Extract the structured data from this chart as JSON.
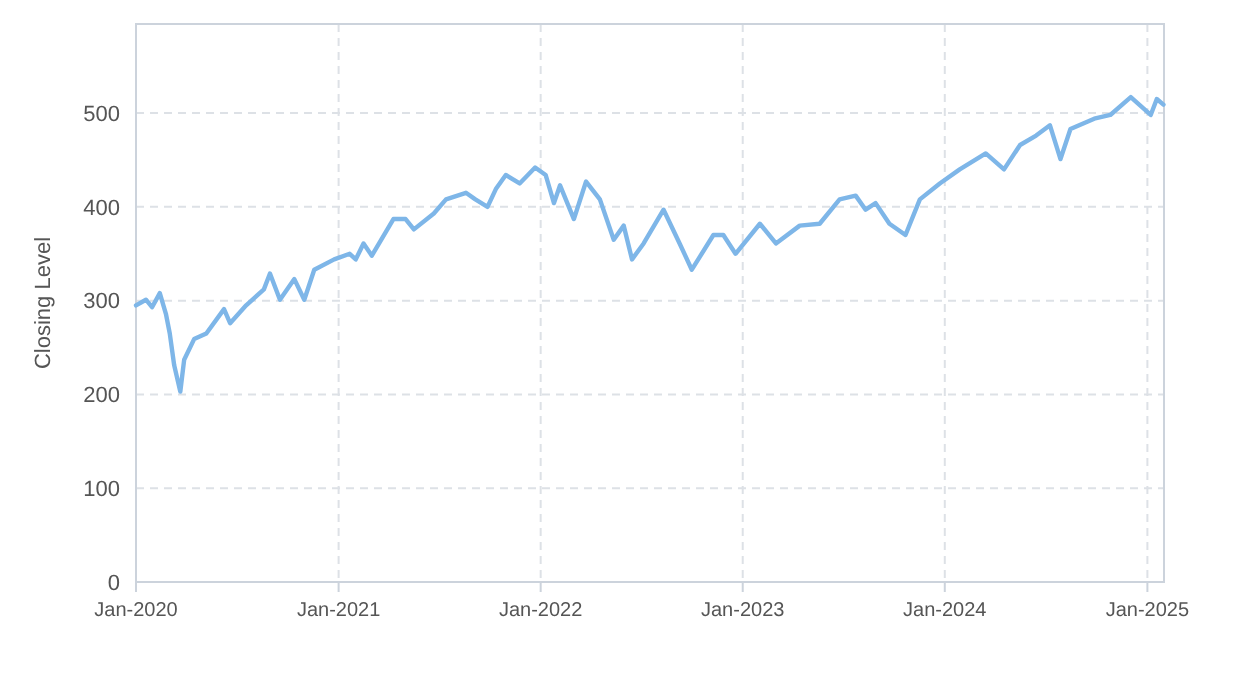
{
  "chart_data": {
    "type": "line",
    "ylabel": "Closing Level",
    "x": [
      "2020-01-01",
      "2020-01-19",
      "2020-01-30",
      "2020-02-13",
      "2020-02-24",
      "2020-03-02",
      "2020-03-10",
      "2020-03-21",
      "2020-03-28",
      "2020-04-15",
      "2020-05-07",
      "2020-06-08",
      "2020-06-19",
      "2020-07-18",
      "2020-08-19",
      "2020-08-30",
      "2020-09-17",
      "2020-10-13",
      "2020-10-31",
      "2020-11-18",
      "2020-12-24",
      "2021-01-21",
      "2021-02-01",
      "2021-02-15",
      "2021-03-02",
      "2021-04-10",
      "2021-05-02",
      "2021-05-17",
      "2021-06-22",
      "2021-07-14",
      "2021-08-19",
      "2021-09-05",
      "2021-09-27",
      "2021-10-12",
      "2021-10-30",
      "2021-11-24",
      "2021-12-22",
      "2022-01-10",
      "2022-01-25",
      "2022-02-05",
      "2022-03-02",
      "2022-03-24",
      "2022-04-18",
      "2022-05-13",
      "2022-05-31",
      "2022-06-15",
      "2022-07-06",
      "2022-08-11",
      "2022-09-09",
      "2022-10-01",
      "2022-11-09",
      "2022-11-27",
      "2022-12-19",
      "2023-02-01",
      "2023-03-02",
      "2023-04-14",
      "2023-05-20",
      "2023-06-25",
      "2023-07-24",
      "2023-08-11",
      "2023-08-29",
      "2023-09-23",
      "2023-10-22",
      "2023-11-17",
      "2023-12-23",
      "2024-01-28",
      "2024-03-15",
      "2024-04-17",
      "2024-05-16",
      "2024-06-14",
      "2024-07-09",
      "2024-07-28",
      "2024-08-15",
      "2024-09-27",
      "2024-10-26",
      "2024-12-02",
      "2025-01-07",
      "2025-01-18",
      "2025-01-30"
    ],
    "series": [
      {
        "color": "#7eb6e8",
        "values": [
          295,
          301,
          293,
          308,
          286,
          265,
          231,
          203,
          237,
          259,
          265,
          291,
          276,
          295,
          312,
          329,
          301,
          323,
          301,
          333,
          344,
          350,
          344,
          361,
          348,
          387,
          387,
          376,
          393,
          408,
          415,
          408,
          400,
          419,
          434,
          425,
          442,
          434,
          404,
          423,
          387,
          427,
          408,
          365,
          380,
          344,
          361,
          397,
          361,
          333,
          370,
          370,
          350,
          382,
          361,
          380,
          382,
          408,
          412,
          397,
          404,
          382,
          370,
          408,
          425,
          440,
          457,
          440,
          466,
          476,
          487,
          451,
          483,
          494,
          498,
          517,
          498,
          515,
          509
        ]
      }
    ],
    "xlim": [
      "2020-01-01",
      "2025-01-31"
    ],
    "xticks": [
      {
        "value": "2020-01-01",
        "label": "Jan-2020"
      },
      {
        "value": "2021-01-01",
        "label": "Jan-2021"
      },
      {
        "value": "2022-01-01",
        "label": "Jan-2022"
      },
      {
        "value": "2023-01-01",
        "label": "Jan-2023"
      },
      {
        "value": "2024-01-01",
        "label": "Jan-2024"
      },
      {
        "value": "2025-01-01",
        "label": "Jan-2025"
      }
    ],
    "ylim": [
      0,
      595
    ],
    "yticks": [
      0,
      100,
      200,
      300,
      400,
      500
    ],
    "grid": true,
    "marker": "none",
    "line_style": "solid"
  }
}
